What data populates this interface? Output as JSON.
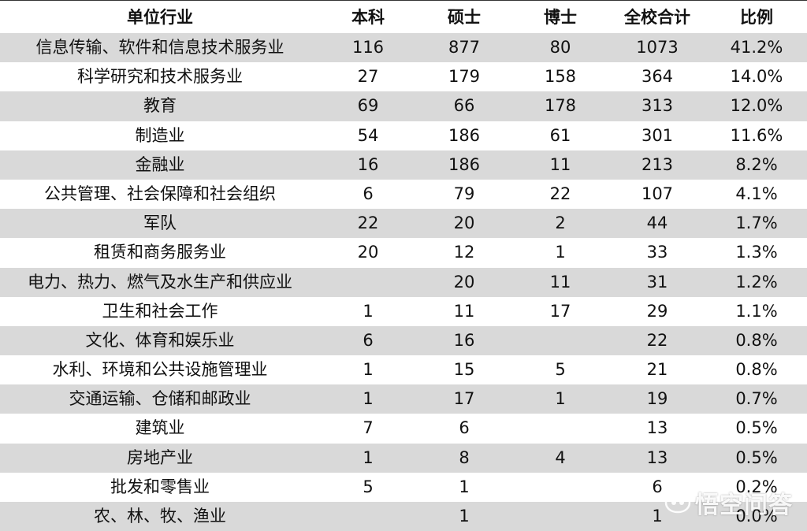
{
  "table": {
    "headers": [
      "单位行业",
      "本科",
      "硕士",
      "博士",
      "全校合计",
      "比例"
    ],
    "rows": [
      [
        "信息传输、软件和信息技术服务业",
        "116",
        "877",
        "80",
        "1073",
        "41.2%"
      ],
      [
        "科学研究和技术服务业",
        "27",
        "179",
        "158",
        "364",
        "14.0%"
      ],
      [
        "教育",
        "69",
        "66",
        "178",
        "313",
        "12.0%"
      ],
      [
        "制造业",
        "54",
        "186",
        "61",
        "301",
        "11.6%"
      ],
      [
        "金融业",
        "16",
        "186",
        "11",
        "213",
        "8.2%"
      ],
      [
        "公共管理、社会保障和社会组织",
        "6",
        "79",
        "22",
        "107",
        "4.1%"
      ],
      [
        "军队",
        "22",
        "20",
        "2",
        "44",
        "1.7%"
      ],
      [
        "租赁和商务服务业",
        "20",
        "12",
        "1",
        "33",
        "1.3%"
      ],
      [
        "电力、热力、燃气及水生产和供应业",
        "",
        "20",
        "11",
        "31",
        "1.2%"
      ],
      [
        "卫生和社会工作",
        "1",
        "11",
        "17",
        "29",
        "1.1%"
      ],
      [
        "文化、体育和娱乐业",
        "6",
        "16",
        "",
        "22",
        "0.8%"
      ],
      [
        "水利、环境和公共设施管理业",
        "1",
        "15",
        "5",
        "21",
        "0.8%"
      ],
      [
        "交通运输、仓储和邮政业",
        "1",
        "17",
        "1",
        "19",
        "0.7%"
      ],
      [
        "建筑业",
        "7",
        "6",
        "",
        "13",
        "0.5%"
      ],
      [
        "房地产业",
        "1",
        "8",
        "4",
        "13",
        "0.5%"
      ],
      [
        "批发和零售业",
        "5",
        "1",
        "",
        "6",
        "0.2%"
      ],
      [
        "农、林、牧、渔业",
        "",
        "1",
        "",
        "1",
        "0.0%"
      ]
    ],
    "shade_color": "#d9d9d9"
  },
  "watermark": {
    "text": "悟空问答",
    "icon": "wukong-logo-icon"
  }
}
